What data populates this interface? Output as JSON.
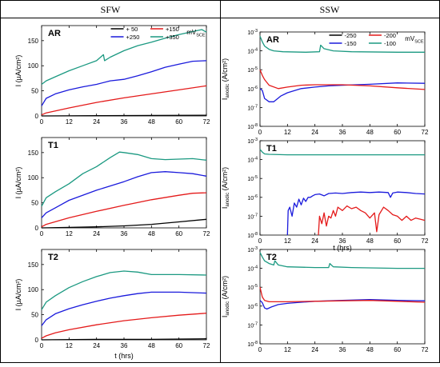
{
  "headers": {
    "left": "SFW",
    "right": "SSW"
  },
  "chart_data": [
    {
      "type": "line",
      "panel": "AR",
      "column": "SFW",
      "yscale": "linear",
      "ylabel": "I (µA/cm²)",
      "xlabel": "",
      "xlim": [
        0,
        72
      ],
      "ylim": [
        0,
        180
      ],
      "xticks": [
        0,
        12,
        24,
        36,
        48,
        60,
        72
      ],
      "yticks": [
        0,
        50,
        100,
        150
      ],
      "legend": {
        "position": "top-right",
        "unit": "mV",
        "unit_sub": "SCE"
      },
      "series": [
        {
          "name": "+ 50",
          "color": "#000000",
          "x": [
            0,
            24,
            48,
            72
          ],
          "y": [
            0,
            0.5,
            1,
            1.5
          ]
        },
        {
          "name": "+250",
          "color": "#1a1adc",
          "x": [
            0,
            2,
            6,
            12,
            18,
            24,
            30,
            36,
            42,
            48,
            54,
            60,
            66,
            72
          ],
          "y": [
            20,
            35,
            44,
            52,
            58,
            63,
            70,
            73,
            80,
            88,
            97,
            103,
            109,
            110
          ]
        },
        {
          "name": "+150",
          "color": "#e41a1a",
          "x": [
            0,
            2,
            6,
            12,
            24,
            36,
            48,
            60,
            72
          ],
          "y": [
            2,
            6,
            10,
            16,
            27,
            36,
            44,
            52,
            60
          ]
        },
        {
          "name": "+350",
          "color": "#1b9981",
          "x": [
            0,
            2,
            6,
            12,
            18,
            24,
            27,
            27.5,
            30,
            36,
            42,
            48,
            54,
            60,
            66,
            70,
            72
          ],
          "y": [
            63,
            70,
            78,
            90,
            100,
            110,
            122,
            110,
            117,
            130,
            140,
            147,
            155,
            162,
            168,
            172,
            167
          ]
        }
      ]
    },
    {
      "type": "line",
      "panel": "T1",
      "column": "SFW",
      "yscale": "linear",
      "ylabel": "I (µA/cm²)",
      "xlabel": "",
      "xlim": [
        0,
        72
      ],
      "ylim": [
        0,
        180
      ],
      "xticks": [
        0,
        12,
        24,
        36,
        48,
        60,
        72
      ],
      "yticks": [
        0,
        50,
        100,
        150
      ],
      "series": [
        {
          "name": "+ 50",
          "color": "#000000",
          "x": [
            0,
            12,
            24,
            36,
            48,
            60,
            72
          ],
          "y": [
            0,
            1,
            2,
            4,
            7,
            12,
            17
          ]
        },
        {
          "name": "+250",
          "color": "#1a1adc",
          "x": [
            0,
            2,
            6,
            12,
            24,
            36,
            42,
            48,
            54,
            60,
            66,
            72
          ],
          "y": [
            20,
            30,
            40,
            55,
            75,
            92,
            102,
            110,
            112,
            110,
            108,
            103
          ]
        },
        {
          "name": "+150",
          "color": "#e41a1a",
          "x": [
            0,
            2,
            12,
            24,
            36,
            48,
            60,
            66,
            72
          ],
          "y": [
            2,
            7,
            20,
            33,
            45,
            56,
            65,
            69,
            70
          ]
        },
        {
          "name": "+350",
          "color": "#1b9981",
          "x": [
            0,
            2,
            6,
            12,
            18,
            24,
            30,
            34,
            36,
            42,
            48,
            54,
            60,
            66,
            72
          ],
          "y": [
            43,
            60,
            72,
            88,
            108,
            122,
            140,
            151,
            150,
            146,
            138,
            136,
            137,
            138,
            135
          ]
        }
      ]
    },
    {
      "type": "line",
      "panel": "T2",
      "column": "SFW",
      "yscale": "linear",
      "ylabel": "I (µA/cm²)",
      "xlabel": "t (hrs)",
      "xlim": [
        0,
        72
      ],
      "ylim": [
        0,
        180
      ],
      "xticks": [
        0,
        12,
        24,
        36,
        48,
        60,
        72
      ],
      "yticks": [
        0,
        50,
        100,
        150
      ],
      "series": [
        {
          "name": "+ 50",
          "color": "#000000",
          "x": [
            0,
            24,
            48,
            72
          ],
          "y": [
            0,
            1,
            1,
            2
          ]
        },
        {
          "name": "+250",
          "color": "#1a1adc",
          "x": [
            0,
            2,
            6,
            12,
            18,
            24,
            30,
            36,
            42,
            48,
            54,
            60,
            66,
            72
          ],
          "y": [
            28,
            40,
            52,
            62,
            70,
            77,
            83,
            88,
            92,
            95,
            95,
            95,
            94,
            93
          ]
        },
        {
          "name": "+150",
          "color": "#e41a1a",
          "x": [
            0,
            2,
            6,
            12,
            24,
            36,
            48,
            60,
            72
          ],
          "y": [
            3,
            8,
            14,
            20,
            30,
            38,
            44,
            49,
            53
          ]
        },
        {
          "name": "+350",
          "color": "#1b9981",
          "x": [
            0,
            2,
            6,
            12,
            18,
            24,
            30,
            36,
            42,
            48,
            60,
            72
          ],
          "y": [
            60,
            75,
            88,
            104,
            116,
            126,
            134,
            137,
            135,
            130,
            130,
            129
          ]
        }
      ]
    },
    {
      "type": "line",
      "panel": "AR",
      "column": "SSW",
      "yscale": "log",
      "ylabel": "I",
      "ylabel_sub": "anodic",
      "ylabel_unit": "(A/cm²)",
      "xlabel": "",
      "xlim": [
        0,
        72
      ],
      "ylim": [
        1e-08,
        0.001
      ],
      "xticks": [
        0,
        12,
        24,
        36,
        48,
        60,
        72
      ],
      "yticks": [
        1e-08,
        1e-07,
        1e-06,
        1e-05,
        0.0001,
        0.001
      ],
      "ytick_labels": [
        "10-8",
        "10-7",
        "10-6",
        "10-5",
        "10-4",
        "10-3"
      ],
      "legend": {
        "position": "top-right",
        "unit": "mV",
        "unit_sub": "SCE"
      },
      "series": [
        {
          "name": "-250",
          "color": "#000000",
          "x": [],
          "y": []
        },
        {
          "name": "-150",
          "color": "#1a1adc",
          "x": [
            0,
            1,
            2,
            4,
            6,
            9,
            12,
            18,
            24,
            30,
            36,
            48,
            60,
            72
          ],
          "y": [
            1e-06,
            8e-07,
            3e-07,
            2e-07,
            2e-07,
            4e-07,
            6e-07,
            1e-06,
            1.2e-06,
            1.4e-06,
            1.5e-06,
            1.7e-06,
            2e-06,
            1.9e-06
          ]
        },
        {
          "name": "-200",
          "color": "#e41a1a",
          "x": [
            0,
            1,
            2,
            4,
            8,
            12,
            18,
            24,
            36,
            48,
            60,
            72
          ],
          "y": [
            1e-05,
            5e-06,
            3e-06,
            1.5e-06,
            1e-06,
            1.2e-06,
            1.5e-06,
            1.6e-06,
            1.6e-06,
            1.4e-06,
            1.1e-06,
            9e-07
          ]
        },
        {
          "name": "-100",
          "color": "#1b9981",
          "x": [
            0,
            1,
            2,
            4,
            6,
            10,
            20,
            26,
            26.5,
            28,
            32,
            40,
            60,
            72
          ],
          "y": [
            0.0006,
            0.0003,
            0.00018,
            0.00012,
            0.0001,
            9e-05,
            8.5e-05,
            9e-05,
            0.0002,
            0.00013,
            0.0001,
            9e-05,
            8.5e-05,
            8.5e-05
          ]
        }
      ]
    },
    {
      "type": "line",
      "panel": "T1",
      "column": "SSW",
      "yscale": "log",
      "ylabel": "I",
      "ylabel_sub": "anodic",
      "ylabel_unit": "(A/cm²)",
      "xlabel": "t (hrs)",
      "xlim": [
        0,
        72
      ],
      "ylim": [
        1e-08,
        0.001
      ],
      "xticks": [
        0,
        12,
        24,
        36,
        48,
        60,
        72
      ],
      "yticks": [
        1e-08,
        1e-07,
        1e-06,
        1e-05,
        0.0001,
        0.001
      ],
      "ytick_labels": [
        "10-8",
        "10-7",
        "10-6",
        "10-5",
        "10-4",
        "10-3"
      ],
      "series": [
        {
          "name": "-150",
          "color": "#1a1adc",
          "x": [
            12,
            12.3,
            13,
            14,
            15,
            16,
            17,
            18,
            19,
            20,
            21,
            22,
            23,
            24,
            26,
            28,
            30,
            33,
            36,
            40,
            44,
            48,
            52,
            56,
            57,
            58,
            60,
            64,
            68,
            72
          ],
          "y": [
            1e-08,
            2e-07,
            3e-07,
            1e-07,
            5e-07,
            3e-07,
            8e-07,
            4e-07,
            9e-07,
            6e-07,
            1e-06,
            1e-06,
            1.2e-06,
            1.4e-06,
            1.5e-06,
            1.2e-06,
            1.6e-06,
            1.7e-06,
            1.6e-06,
            1.8e-06,
            1.9e-06,
            1.8e-06,
            1.9e-06,
            1.8e-06,
            1e-06,
            1.7e-06,
            1.9e-06,
            1.8e-06,
            1.6e-06,
            1.5e-06
          ]
        },
        {
          "name": "-200",
          "color": "#e41a1a",
          "x": [
            25.5,
            26,
            27,
            28,
            29,
            30,
            31,
            32,
            33,
            34,
            36,
            38,
            40,
            42,
            44,
            46,
            48,
            50,
            51,
            52,
            54,
            56,
            58,
            60,
            62,
            64,
            66,
            68,
            70,
            72
          ],
          "y": [
            1e-08,
            1e-07,
            4e-08,
            1.5e-07,
            3e-08,
            1e-07,
            8e-08,
            2e-07,
            1e-07,
            3e-07,
            2e-07,
            3.5e-07,
            2.5e-07,
            3e-07,
            2e-07,
            1.5e-07,
            8e-08,
            1.5e-07,
            1.5e-08,
            1.2e-07,
            3e-07,
            2e-07,
            1.2e-07,
            1e-07,
            6e-08,
            1e-07,
            6e-08,
            8e-08,
            7e-08,
            6e-08
          ]
        },
        {
          "name": "-100",
          "color": "#1b9981",
          "x": [
            0,
            1,
            2,
            4,
            12,
            24,
            36,
            48,
            60,
            72
          ],
          "y": [
            0.00035,
            0.00025,
            0.0002,
            0.00019,
            0.00018,
            0.00018,
            0.00018,
            0.00018,
            0.00018,
            0.00018
          ]
        }
      ]
    },
    {
      "type": "line",
      "panel": "T2",
      "column": "SSW",
      "yscale": "log",
      "ylabel": "I",
      "ylabel_sub": "anodic",
      "ylabel_unit": "(A/cm²)",
      "xlabel": "",
      "xlim": [
        0,
        72
      ],
      "ylim": [
        1e-08,
        0.001
      ],
      "xticks": [
        0,
        12,
        24,
        36,
        48,
        60,
        72
      ],
      "yticks": [
        1e-08,
        1e-07,
        1e-06,
        1e-05,
        0.0001,
        0.001
      ],
      "ytick_labels": [
        "10-8",
        "10-7",
        "10-6",
        "10-5",
        "10-4",
        "10-3"
      ],
      "series": [
        {
          "name": "-150",
          "color": "#1a1adc",
          "x": [
            0,
            1,
            2,
            3,
            5,
            8,
            12,
            18,
            24,
            36,
            48,
            60,
            72
          ],
          "y": [
            2e-06,
            1.5e-06,
            8e-07,
            7e-07,
            9e-07,
            1.2e-06,
            1.4e-06,
            1.6e-06,
            1.8e-06,
            2e-06,
            2.2e-06,
            2e-06,
            1.9e-06
          ]
        },
        {
          "name": "-200",
          "color": "#e41a1a",
          "x": [
            0,
            1,
            2,
            4,
            6,
            8,
            12,
            24,
            36,
            48,
            60,
            72
          ],
          "y": [
            1e-05,
            3e-06,
            2e-06,
            1.7e-06,
            1.7e-06,
            1.7e-06,
            1.7e-06,
            1.8e-06,
            1.9e-06,
            2e-06,
            1.8e-06,
            1.6e-06
          ]
        },
        {
          "name": "-100",
          "color": "#1b9981",
          "x": [
            0,
            1,
            2,
            4,
            6,
            6.5,
            8,
            12,
            24,
            30,
            30.5,
            32,
            40,
            60,
            72
          ],
          "y": [
            0.0007,
            0.0004,
            0.00025,
            0.00018,
            0.00015,
            0.00025,
            0.00015,
            0.00012,
            0.00011,
            0.00011,
            0.00018,
            0.00012,
            0.00011,
            0.0001,
            0.0001
          ]
        }
      ]
    }
  ]
}
